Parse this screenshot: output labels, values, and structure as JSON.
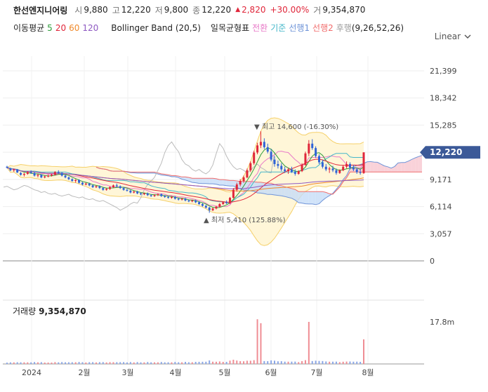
{
  "header": {
    "name": "한선엔지니어링",
    "open_label": "시",
    "open": "9,880",
    "high_label": "고",
    "high": "12,220",
    "low_label": "저",
    "low": "9,800",
    "close_label": "종",
    "close": "12,220",
    "change": "2,820",
    "change_pct": "+30.00%",
    "volume_label": "거",
    "volume": "9,354,870",
    "up_color": "#e0263a"
  },
  "indicators": {
    "ma_label": "이동평균",
    "ma": [
      {
        "label": "5",
        "color": "#2e9d3a"
      },
      {
        "label": "20",
        "color": "#e0263a"
      },
      {
        "label": "60",
        "color": "#f08a2c"
      },
      {
        "label": "120",
        "color": "#8e59c2"
      }
    ],
    "bollinger_label": "Bollinger Band (20,5)",
    "ichimoku_label": "일목균형표",
    "ichimoku": [
      {
        "label": "전환",
        "color": "#e87ac8"
      },
      {
        "label": "기준",
        "color": "#45b7c9"
      },
      {
        "label": "선행1",
        "color": "#6f94d8"
      },
      {
        "label": "선행2",
        "color": "#f06c6c"
      },
      {
        "label": "후행",
        "color": "#999999"
      }
    ],
    "ichimoku_params": "(9,26,52,26)"
  },
  "scale_control": {
    "label": "Linear",
    "icon": "chevron-down-icon"
  },
  "chart_data": [
    {
      "type": "candlestick",
      "y_ticks": [
        "21,399",
        "18,342",
        "15,285",
        "12,228",
        "9,171",
        "6,114",
        "3,057",
        "0"
      ],
      "y_tick_values": [
        21399,
        18342,
        15285,
        12228,
        9171,
        6114,
        3057,
        0
      ],
      "ylim": [
        0,
        22500
      ],
      "x_labels": [
        "2024",
        "2월",
        "3월",
        "4월",
        "5월",
        "6월",
        "7월",
        "8월"
      ],
      "current_price": {
        "label": "12,220",
        "value": 12220,
        "color": "#3b5998"
      },
      "annotations": [
        {
          "text": "최고 14,600 (-16.30%)",
          "value": 14600,
          "marker": "▼"
        },
        {
          "text": "최저 5,410 (125.88%)",
          "value": 5410,
          "marker": "▲"
        }
      ],
      "ohlc_approx": [
        [
          10600,
          10700,
          10400,
          10500
        ],
        [
          10400,
          10500,
          10100,
          10200
        ],
        [
          10200,
          10400,
          10000,
          10300
        ],
        [
          10300,
          10350,
          9900,
          9950
        ],
        [
          9900,
          10000,
          9600,
          9700
        ],
        [
          9700,
          9900,
          9500,
          9800
        ],
        [
          9800,
          10100,
          9700,
          10000
        ],
        [
          10000,
          10200,
          9800,
          9900
        ],
        [
          9900,
          10000,
          9500,
          9600
        ],
        [
          9600,
          9800,
          9400,
          9700
        ],
        [
          9700,
          9750,
          9300,
          9400
        ],
        [
          9400,
          9600,
          9300,
          9500
        ],
        [
          9500,
          9700,
          9400,
          9600
        ],
        [
          9600,
          9800,
          9500,
          9700
        ],
        [
          9700,
          10100,
          9600,
          10000
        ],
        [
          10000,
          10200,
          9800,
          9900
        ],
        [
          9900,
          10000,
          9500,
          9600
        ],
        [
          9600,
          9700,
          9300,
          9400
        ],
        [
          9400,
          9500,
          9100,
          9200
        ],
        [
          9200,
          9300,
          8900,
          9000
        ],
        [
          9000,
          9200,
          8800,
          9100
        ],
        [
          9100,
          9200,
          8700,
          8800
        ],
        [
          8800,
          8900,
          8500,
          8600
        ],
        [
          8600,
          8800,
          8500,
          8700
        ],
        [
          8700,
          8800,
          8400,
          8500
        ],
        [
          8500,
          8600,
          8200,
          8300
        ],
        [
          8300,
          8500,
          8200,
          8400
        ],
        [
          8400,
          8500,
          8100,
          8200
        ],
        [
          8200,
          8300,
          7900,
          8000
        ],
        [
          8000,
          8200,
          7900,
          8100
        ],
        [
          8100,
          8400,
          8000,
          8300
        ],
        [
          8300,
          8600,
          8200,
          8500
        ],
        [
          8500,
          8700,
          8300,
          8400
        ],
        [
          8400,
          8500,
          8100,
          8200
        ],
        [
          8200,
          8300,
          7900,
          8000
        ],
        [
          8000,
          8100,
          7800,
          7900
        ],
        [
          7900,
          8000,
          7600,
          7700
        ],
        [
          7700,
          7900,
          7600,
          7800
        ],
        [
          7800,
          7900,
          7500,
          7600
        ],
        [
          7600,
          7700,
          7400,
          7500
        ],
        [
          7500,
          7700,
          7400,
          7600
        ],
        [
          7600,
          7700,
          7300,
          7400
        ],
        [
          7400,
          7500,
          7200,
          7300
        ],
        [
          7300,
          7500,
          7200,
          7400
        ],
        [
          7400,
          7600,
          7300,
          7500
        ],
        [
          7500,
          7600,
          7200,
          7300
        ],
        [
          7300,
          7400,
          7100,
          7200
        ],
        [
          7200,
          7300,
          7000,
          7100
        ],
        [
          7100,
          7300,
          7000,
          7200
        ],
        [
          7200,
          7300,
          6900,
          7000
        ],
        [
          7000,
          7100,
          6800,
          6900
        ],
        [
          6900,
          7100,
          6800,
          7000
        ],
        [
          7000,
          7100,
          6700,
          6800
        ],
        [
          6800,
          6900,
          6600,
          6700
        ],
        [
          6700,
          6900,
          6600,
          6800
        ],
        [
          6800,
          6900,
          6500,
          6600
        ],
        [
          6600,
          6700,
          6300,
          6400
        ],
        [
          6400,
          6500,
          6100,
          6200
        ],
        [
          6200,
          6300,
          5900,
          6000
        ],
        [
          6000,
          6100,
          5410,
          5700
        ],
        [
          5700,
          6000,
          5600,
          5900
        ],
        [
          5900,
          6200,
          5800,
          6100
        ],
        [
          6100,
          6500,
          6000,
          6400
        ],
        [
          6400,
          6700,
          6300,
          6600
        ],
        [
          6600,
          6800,
          6400,
          6500
        ],
        [
          6500,
          7200,
          6400,
          7100
        ],
        [
          7100,
          8200,
          7000,
          8000
        ],
        [
          8000,
          8800,
          7800,
          8600
        ],
        [
          8600,
          9200,
          8400,
          9000
        ],
        [
          9000,
          9600,
          8800,
          9400
        ],
        [
          9400,
          10400,
          9300,
          10200
        ],
        [
          10200,
          11200,
          10000,
          11000
        ],
        [
          11000,
          12400,
          10800,
          12200
        ],
        [
          12200,
          13300,
          12000,
          13000
        ],
        [
          13000,
          14600,
          12700,
          13400
        ],
        [
          13400,
          13800,
          12600,
          12800
        ],
        [
          12800,
          13200,
          12100,
          12300
        ],
        [
          12300,
          12600,
          11200,
          11400
        ],
        [
          11400,
          11800,
          10600,
          10900
        ],
        [
          10900,
          11300,
          10400,
          10700
        ],
        [
          10700,
          11000,
          10100,
          10300
        ],
        [
          10300,
          10600,
          9900,
          10100
        ],
        [
          10100,
          10500,
          9800,
          10300
        ],
        [
          10300,
          10600,
          9900,
          10000
        ],
        [
          10000,
          10300,
          9600,
          9800
        ],
        [
          9800,
          10200,
          9700,
          10100
        ],
        [
          10100,
          11000,
          10000,
          10800
        ],
        [
          10800,
          12300,
          10700,
          12100
        ],
        [
          12100,
          13600,
          11800,
          13200
        ],
        [
          13200,
          13700,
          12500,
          12700
        ],
        [
          12700,
          12900,
          11600,
          11800
        ],
        [
          11800,
          12000,
          10900,
          11100
        ],
        [
          11100,
          11400,
          10400,
          10600
        ],
        [
          10600,
          10900,
          10100,
          10300
        ],
        [
          10300,
          10600,
          9900,
          10400
        ],
        [
          10400,
          10700,
          10000,
          10200
        ],
        [
          10200,
          10400,
          9700,
          9900
        ],
        [
          9900,
          10300,
          9800,
          10200
        ],
        [
          10200,
          10800,
          10100,
          10600
        ],
        [
          10600,
          11200,
          10400,
          10900
        ],
        [
          10900,
          11100,
          10300,
          10500
        ],
        [
          10500,
          10800,
          10100,
          10300
        ],
        [
          10300,
          10500,
          9800,
          10000
        ],
        [
          10000,
          10300,
          9700,
          9900
        ],
        [
          9880,
          12220,
          9800,
          12220
        ]
      ]
    },
    {
      "type": "bar",
      "title": "거래량",
      "title_value": "9,354,870",
      "y_ticks": [
        "17.8m"
      ],
      "y_tick_values": [
        17800000
      ],
      "ylim": [
        0,
        24000000
      ]
    }
  ]
}
